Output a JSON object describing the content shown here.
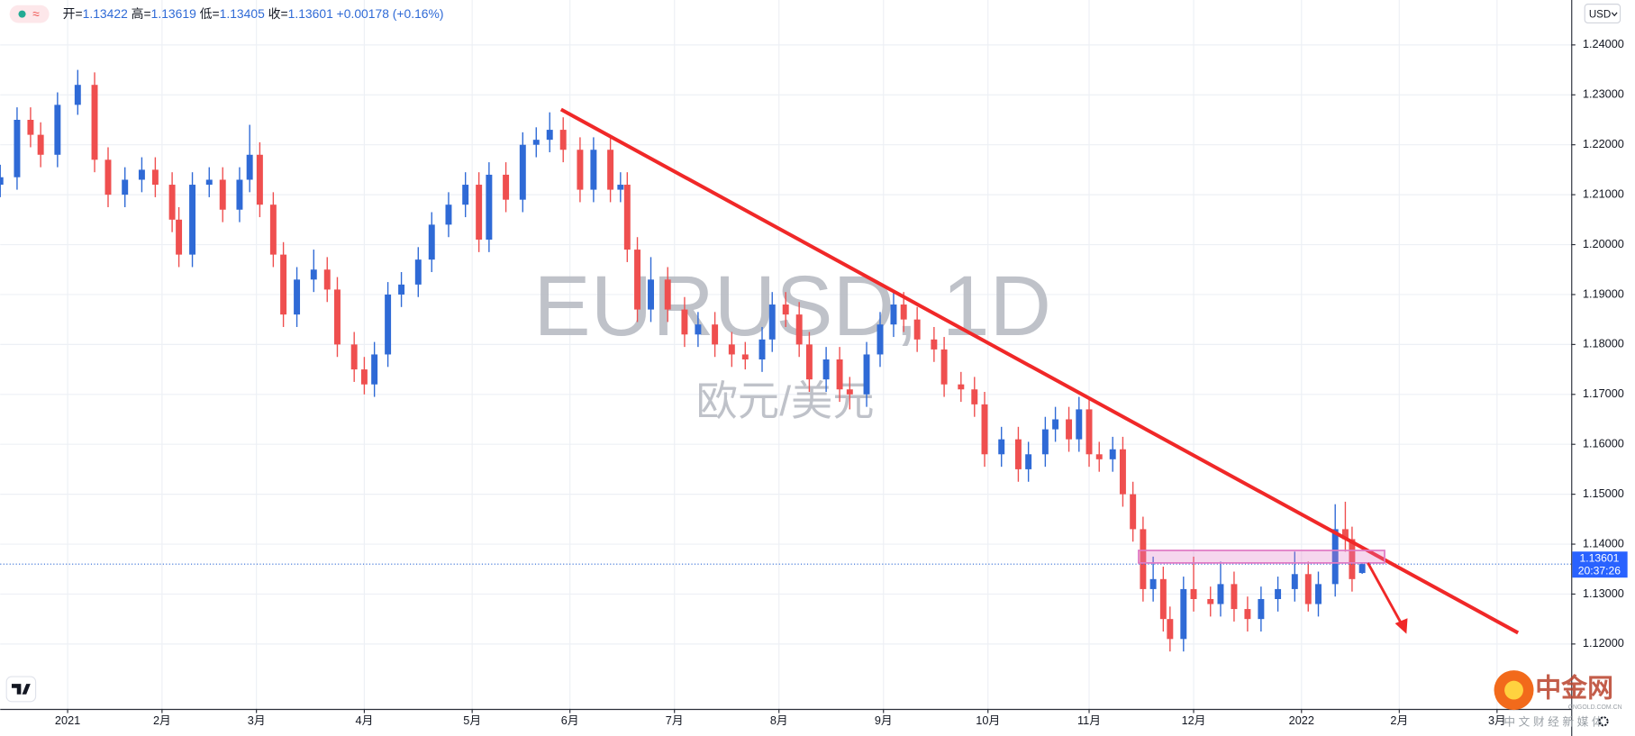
{
  "header": {
    "status_icon": "≈",
    "open_label": "开=",
    "high_label": "高=",
    "low_label": "低=",
    "close_label": "收=",
    "change": "+0.00178",
    "change_pct": "(+0.16%)",
    "currency_button": "USD",
    "price_time": "20:37:26",
    "brand": "中金网",
    "brand_url": "CNGOLD.COM.CN",
    "brand_slogan": "中 文 财 经 新 媒 体"
  },
  "chart_data": {
    "type": "candlestick",
    "title": "EURUSD, 1D",
    "subtitle": "欧元/美元",
    "up_color": "#2f6ad6",
    "down_color": "#ef4f4f",
    "grid": true,
    "xlim": [
      -20,
      446
    ],
    "ylim": [
      1.107,
      1.249
    ],
    "xticks": [
      {
        "value": 0,
        "label": "2021"
      },
      {
        "value": 28,
        "label": "2月"
      },
      {
        "value": 56,
        "label": "3月"
      },
      {
        "value": 88,
        "label": "4月"
      },
      {
        "value": 120,
        "label": "5月"
      },
      {
        "value": 149,
        "label": "6月"
      },
      {
        "value": 180,
        "label": "7月"
      },
      {
        "value": 211,
        "label": "8月"
      },
      {
        "value": 242,
        "label": "9月"
      },
      {
        "value": 273,
        "label": "10月"
      },
      {
        "value": 303,
        "label": "11月"
      },
      {
        "value": 334,
        "label": "12月"
      },
      {
        "value": 366,
        "label": "2022"
      },
      {
        "value": 395,
        "label": "2月"
      },
      {
        "value": 424,
        "label": "3月"
      }
    ],
    "yticks": [
      {
        "value": 1.12,
        "label": "1.12000"
      },
      {
        "value": 1.13,
        "label": "1.13000"
      },
      {
        "value": 1.14,
        "label": "1.14000"
      },
      {
        "value": 1.15,
        "label": "1.15000"
      },
      {
        "value": 1.16,
        "label": "1.16000"
      },
      {
        "value": 1.17,
        "label": "1.17000"
      },
      {
        "value": 1.18,
        "label": "1.18000"
      },
      {
        "value": 1.19,
        "label": "1.19000"
      },
      {
        "value": 1.2,
        "label": "1.20000"
      },
      {
        "value": 1.21,
        "label": "1.21000"
      },
      {
        "value": 1.22,
        "label": "1.22000"
      },
      {
        "value": 1.23,
        "label": "1.23000"
      },
      {
        "value": 1.24,
        "label": "1.24000"
      }
    ],
    "x": [
      -20,
      -15,
      -11,
      -8,
      -3,
      3,
      8,
      12,
      17,
      22,
      26,
      31,
      33,
      37,
      42,
      46,
      51,
      54,
      57,
      61,
      64,
      68,
      73,
      77,
      80,
      85,
      88,
      91,
      95,
      99,
      104,
      108,
      113,
      118,
      122,
      125,
      130,
      135,
      139,
      143,
      147,
      152,
      156,
      161,
      164,
      166,
      169,
      173,
      178,
      183,
      187,
      192,
      197,
      201,
      206,
      209,
      213,
      217,
      220,
      225,
      229,
      232,
      237,
      241,
      245,
      248,
      252,
      257,
      260,
      265,
      269,
      272,
      277,
      282,
      285,
      290,
      293,
      297,
      300,
      303,
      306,
      310,
      313,
      316,
      319,
      322,
      325,
      327,
      331,
      334,
      339,
      342,
      346,
      350,
      354,
      359,
      364,
      368,
      371,
      376,
      379,
      381,
      384
    ],
    "open": [
      1.212,
      1.2135,
      1.225,
      1.222,
      1.218,
      1.228,
      1.232,
      1.217,
      1.21,
      1.213,
      1.215,
      1.212,
      1.205,
      1.198,
      1.212,
      1.213,
      1.207,
      1.213,
      1.218,
      1.208,
      1.198,
      1.186,
      1.193,
      1.195,
      1.191,
      1.18,
      1.175,
      1.172,
      1.178,
      1.19,
      1.192,
      1.197,
      1.204,
      1.208,
      1.212,
      1.201,
      1.214,
      1.209,
      1.22,
      1.221,
      1.223,
      1.219,
      1.211,
      1.219,
      1.211,
      1.212,
      1.199,
      1.187,
      1.193,
      1.187,
      1.182,
      1.184,
      1.18,
      1.178,
      1.177,
      1.181,
      1.188,
      1.186,
      1.18,
      1.173,
      1.177,
      1.171,
      1.17,
      1.178,
      1.184,
      1.188,
      1.185,
      1.181,
      1.179,
      1.172,
      1.171,
      1.168,
      1.158,
      1.161,
      1.155,
      1.158,
      1.163,
      1.165,
      1.161,
      1.167,
      1.158,
      1.157,
      1.159,
      1.15,
      1.143,
      1.131,
      1.133,
      1.125,
      1.121,
      1.131,
      1.129,
      1.128,
      1.132,
      1.127,
      1.125,
      1.129,
      1.131,
      1.134,
      1.128,
      1.132,
      1.143,
      1.141,
      1.13422
    ],
    "high": [
      1.216,
      1.2275,
      1.2275,
      1.2245,
      1.2305,
      1.235,
      1.2345,
      1.2195,
      1.2155,
      1.2175,
      1.2175,
      1.2145,
      1.2075,
      1.2145,
      1.2155,
      1.2155,
      1.2155,
      1.224,
      1.2205,
      1.2105,
      1.2005,
      1.1955,
      1.199,
      1.1975,
      1.1935,
      1.1825,
      1.1775,
      1.1805,
      1.1925,
      1.1945,
      1.1995,
      1.2065,
      1.2105,
      1.2145,
      1.2145,
      1.2165,
      1.2165,
      1.2225,
      1.2235,
      1.2265,
      1.2255,
      1.2215,
      1.2215,
      1.2215,
      1.2145,
      1.2145,
      1.2015,
      1.1975,
      1.1955,
      1.1895,
      1.1865,
      1.1865,
      1.1825,
      1.1805,
      1.1835,
      1.1905,
      1.1905,
      1.1885,
      1.1825,
      1.1795,
      1.1795,
      1.1735,
      1.1805,
      1.1865,
      1.1905,
      1.1905,
      1.1875,
      1.1835,
      1.1815,
      1.1745,
      1.1735,
      1.1705,
      1.1635,
      1.1635,
      1.1605,
      1.1655,
      1.1675,
      1.1675,
      1.1695,
      1.1695,
      1.1605,
      1.1615,
      1.1615,
      1.1525,
      1.1455,
      1.1375,
      1.1355,
      1.1275,
      1.1335,
      1.1375,
      1.1315,
      1.1365,
      1.1345,
      1.1295,
      1.1315,
      1.1335,
      1.1385,
      1.1365,
      1.1345,
      1.148,
      1.1485,
      1.1435,
      1.13619
    ],
    "low": [
      1.2095,
      1.211,
      1.2195,
      1.2155,
      1.2155,
      1.226,
      1.2145,
      1.2075,
      1.2075,
      1.2105,
      1.2095,
      1.2025,
      1.1955,
      1.1955,
      1.2095,
      1.2045,
      1.2045,
      1.2105,
      1.2055,
      1.1955,
      1.1835,
      1.1835,
      1.1905,
      1.1885,
      1.1775,
      1.1725,
      1.17,
      1.1695,
      1.1755,
      1.1875,
      1.1895,
      1.1945,
      1.2015,
      1.2055,
      1.1985,
      1.1985,
      1.2065,
      1.2065,
      1.2175,
      1.2185,
      1.2165,
      1.2085,
      1.2085,
      1.2085,
      1.2085,
      1.1965,
      1.1845,
      1.1845,
      1.1845,
      1.1795,
      1.1795,
      1.1775,
      1.1755,
      1.175,
      1.1745,
      1.1785,
      1.1835,
      1.1775,
      1.1705,
      1.1705,
      1.1685,
      1.167,
      1.1675,
      1.1755,
      1.1815,
      1.1825,
      1.1785,
      1.1765,
      1.1695,
      1.1685,
      1.1655,
      1.1555,
      1.1555,
      1.1525,
      1.1525,
      1.1555,
      1.1605,
      1.1585,
      1.1585,
      1.1555,
      1.1545,
      1.1545,
      1.1475,
      1.1405,
      1.1285,
      1.1285,
      1.1225,
      1.1185,
      1.1185,
      1.1265,
      1.1255,
      1.1255,
      1.1245,
      1.1225,
      1.1225,
      1.1265,
      1.1285,
      1.1265,
      1.1255,
      1.1295,
      1.1385,
      1.1305,
      1.13405
    ],
    "close": [
      1.2135,
      1.225,
      1.222,
      1.218,
      1.228,
      1.232,
      1.217,
      1.21,
      1.213,
      1.215,
      1.212,
      1.205,
      1.198,
      1.212,
      1.213,
      1.207,
      1.213,
      1.218,
      1.208,
      1.198,
      1.186,
      1.193,
      1.195,
      1.191,
      1.18,
      1.175,
      1.172,
      1.178,
      1.19,
      1.192,
      1.197,
      1.204,
      1.208,
      1.212,
      1.201,
      1.214,
      1.209,
      1.22,
      1.221,
      1.223,
      1.219,
      1.211,
      1.219,
      1.211,
      1.212,
      1.199,
      1.187,
      1.193,
      1.187,
      1.182,
      1.184,
      1.18,
      1.178,
      1.177,
      1.181,
      1.188,
      1.186,
      1.18,
      1.173,
      1.177,
      1.171,
      1.17,
      1.178,
      1.184,
      1.188,
      1.185,
      1.181,
      1.179,
      1.172,
      1.171,
      1.168,
      1.158,
      1.161,
      1.155,
      1.158,
      1.163,
      1.165,
      1.161,
      1.167,
      1.158,
      1.157,
      1.159,
      1.15,
      1.143,
      1.131,
      1.133,
      1.125,
      1.121,
      1.131,
      1.129,
      1.128,
      1.132,
      1.127,
      1.125,
      1.129,
      1.131,
      1.134,
      1.128,
      1.132,
      1.143,
      1.141,
      1.133,
      1.13601
    ]
  }
}
